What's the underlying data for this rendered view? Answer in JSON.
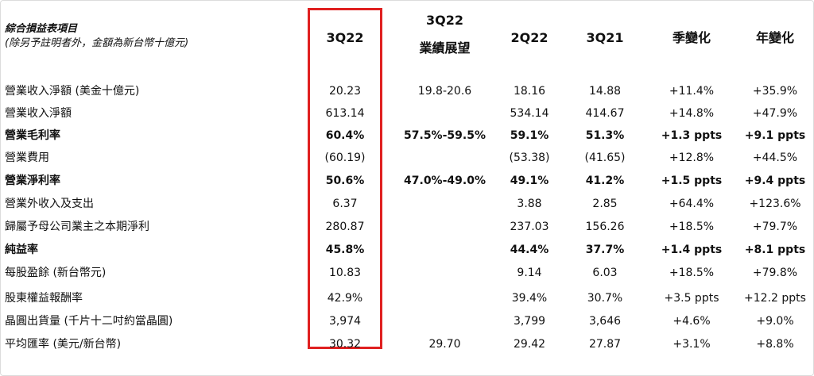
{
  "header": {
    "title": "綜合損益表項目",
    "subtitle": "(除另予註明者外，金額為新台幣十億元)",
    "columns": [
      "3Q22",
      "3Q22",
      "業績展望",
      "2Q22",
      "3Q21",
      "季變化",
      "年變化"
    ]
  },
  "rows": [
    {
      "label": "營業收入淨額 (美金十億元)",
      "v1": "20.23",
      "v2": "19.8-20.6",
      "v3": "18.16",
      "v4": "14.88",
      "v5": "+11.4%",
      "v6": "+35.9%"
    },
    {
      "label": "營業收入淨額",
      "v1": "613.14",
      "v2": "",
      "v3": "534.14",
      "v4": "414.67",
      "v5": "+14.8%",
      "v6": "+47.9%"
    },
    {
      "label": "營業毛利率",
      "v1": "60.4%",
      "v2": "57.5%-59.5%",
      "v3": "59.1%",
      "v4": "51.3%",
      "v5": "+1.3 ppts",
      "v6": "+9.1 ppts"
    },
    {
      "label": "營業費用",
      "v1": "(60.19)",
      "v2": "",
      "v3": "(53.38)",
      "v4": "(41.65)",
      "v5": "+12.8%",
      "v6": "+44.5%"
    },
    {
      "label": "營業淨利率",
      "v1": "50.6%",
      "v2": "47.0%-49.0%",
      "v3": "49.1%",
      "v4": "41.2%",
      "v5": "+1.5 ppts",
      "v6": "+9.4 ppts"
    },
    {
      "label": "營業外收入及支出",
      "v1": "6.37",
      "v2": "",
      "v3": "3.88",
      "v4": "2.85",
      "v5": "+64.4%",
      "v6": "+123.6%"
    },
    {
      "label": "歸屬予母公司業主之本期淨利",
      "v1": "280.87",
      "v2": "",
      "v3": "237.03",
      "v4": "156.26",
      "v5": "+18.5%",
      "v6": "+79.7%"
    },
    {
      "label": "純益率",
      "v1": "45.8%",
      "v2": "",
      "v3": "44.4%",
      "v4": "37.7%",
      "v5": "+1.4 ppts",
      "v6": "+8.1 ppts"
    },
    {
      "label": "每股盈餘 (新台幣元)",
      "v1": "10.83",
      "v2": "",
      "v3": "9.14",
      "v4": "6.03",
      "v5": "+18.5%",
      "v6": "+79.8%"
    },
    {
      "label": "股東權益報酬率",
      "v1": "42.9%",
      "v2": "",
      "v3": "39.4%",
      "v4": "30.7%",
      "v5": "+3.5 ppts",
      "v6": "+12.2 ppts"
    },
    {
      "label": "晶圓出貨量 (千片十二吋約當晶圓)",
      "v1": "3,974",
      "v2": "",
      "v3": "3,799",
      "v4": "3,646",
      "v5": "+4.6%",
      "v6": "+9.0%"
    },
    {
      "label": "平均匯率 (美元/新台幣)",
      "v1": "30.32",
      "v2": "29.70",
      "v3": "29.42",
      "v4": "27.87",
      "v5": "+3.1%",
      "v6": "+8.8%"
    }
  ],
  "highlight_color": "#e02020"
}
